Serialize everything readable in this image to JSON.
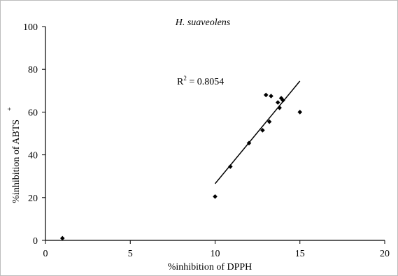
{
  "chart_data": {
    "type": "scatter",
    "title": "H. suaveolens",
    "xlabel": "%inhibition of DPPH",
    "ylabel": "%inhibition of ABTS",
    "ylabel_superscript": "+",
    "xlim": [
      0,
      20
    ],
    "ylim": [
      0,
      100
    ],
    "x_ticks": [
      0,
      5,
      10,
      15,
      20
    ],
    "y_ticks": [
      0,
      20,
      40,
      60,
      80,
      100
    ],
    "grid": false,
    "annotation": {
      "prefix": "R",
      "superscript": "2",
      "suffix": " = 0.8054"
    },
    "points": [
      {
        "x": 1.0,
        "y": 1.0
      },
      {
        "x": 10.0,
        "y": 20.5
      },
      {
        "x": 10.9,
        "y": 34.5
      },
      {
        "x": 12.0,
        "y": 45.5
      },
      {
        "x": 12.8,
        "y": 51.5
      },
      {
        "x": 13.0,
        "y": 68.0
      },
      {
        "x": 13.2,
        "y": 55.5
      },
      {
        "x": 13.3,
        "y": 67.5
      },
      {
        "x": 13.7,
        "y": 64.5
      },
      {
        "x": 13.8,
        "y": 62.0
      },
      {
        "x": 13.9,
        "y": 66.5
      },
      {
        "x": 14.0,
        "y": 65.5
      },
      {
        "x": 15.0,
        "y": 60.0
      }
    ],
    "trendline": {
      "x1": 10.0,
      "y1": 26.5,
      "x2": 15.0,
      "y2": 74.5
    }
  }
}
